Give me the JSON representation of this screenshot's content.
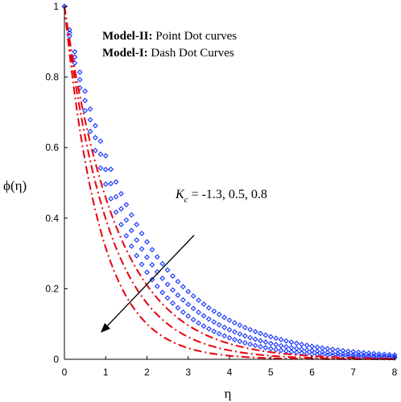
{
  "chart_data": {
    "type": "line",
    "xlabel": "η",
    "ylabel": "ϕ(η)",
    "xlim": [
      0,
      8
    ],
    "ylim": [
      0,
      1
    ],
    "xticks": [
      "0",
      "1",
      "2",
      "3",
      "4",
      "5",
      "6",
      "7",
      "8"
    ],
    "yticks": [
      "0",
      "0.2",
      "0.4",
      "0.6",
      "0.8",
      "1"
    ],
    "legend": {
      "line1_bold": "Model-II:",
      "line1_rest": " Point Dot curves",
      "line2_bold": "Model-I:",
      "line2_rest": " Dash Dot Curves"
    },
    "annotation": {
      "symbol": "K",
      "subscript": "c",
      "text": " = -1.3, 0.5, 0.8"
    },
    "colors": {
      "model_I": "#e8000b",
      "model_II": "#1f3dff",
      "axis": "#000000"
    },
    "series": [
      {
        "group": "model-II",
        "style": "points",
        "k": 0.55
      },
      {
        "group": "model-II",
        "style": "points",
        "k": 0.62
      },
      {
        "group": "model-II",
        "style": "points",
        "k": 0.7
      },
      {
        "group": "model-I",
        "style": "dash-dot",
        "k": 0.78
      },
      {
        "group": "model-I",
        "style": "dash-dot",
        "k": 0.92
      },
      {
        "group": "model-I",
        "style": "dash-dot",
        "k": 1.15
      }
    ]
  }
}
